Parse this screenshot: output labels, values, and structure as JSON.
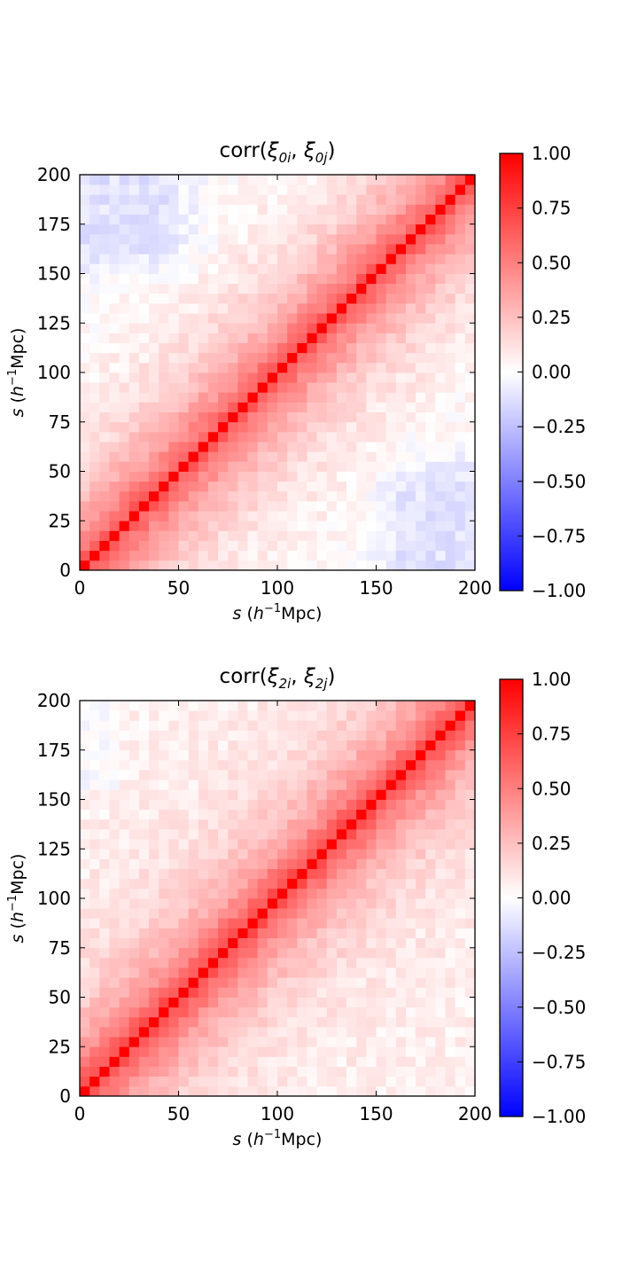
{
  "chart_data": [
    {
      "type": "heatmap",
      "title": "corr(ξ0i, ξ0j)",
      "title_parts": {
        "pre": "corr(",
        "sym1": "ξ",
        "sub1": "0i",
        "mid": ", ",
        "sym2": "ξ",
        "sub2": "0j",
        "post": ")"
      },
      "xlabel": {
        "var": "s",
        "pre": " (",
        "h": "h",
        "sup": "−1",
        "unit": "Mpc)"
      },
      "ylabel": {
        "var": "s",
        "pre": " (",
        "h": "h",
        "sup": "−1",
        "unit": "Mpc)"
      },
      "xlim": [
        0,
        200
      ],
      "ylim": [
        0,
        200
      ],
      "xticks": [
        "0",
        "50",
        "100",
        "150",
        "200"
      ],
      "yticks": [
        "0",
        "25",
        "50",
        "75",
        "100",
        "125",
        "150",
        "175",
        "200"
      ],
      "bins": 40,
      "bin_width": 5,
      "diagonal_value": 1.0,
      "correlation_falloff_bins": 7,
      "offdiagonal_description": "correlation decays away from diagonal; weak negative values near top-left and bottom-right corners",
      "colorbar": {
        "range": [
          -1.0,
          1.0
        ],
        "ticks": [
          "1.00",
          "0.75",
          "0.50",
          "0.25",
          "0.00",
          "−0.25",
          "−0.50",
          "−0.75",
          "−1.00"
        ],
        "colormap": "bwr",
        "low_color": "#0000ff",
        "mid_color": "#ffffff",
        "high_color": "#ff0000"
      },
      "grid": false
    },
    {
      "type": "heatmap",
      "title": "corr(ξ2i, ξ2j)",
      "title_parts": {
        "pre": "corr(",
        "sym1": "ξ",
        "sub1": "2i",
        "mid": ", ",
        "sym2": "ξ",
        "sub2": "2j",
        "post": ")"
      },
      "xlabel": {
        "var": "s",
        "pre": " (",
        "h": "h",
        "sup": "−1",
        "unit": "Mpc)"
      },
      "ylabel": {
        "var": "s",
        "pre": " (",
        "h": "h",
        "sup": "−1",
        "unit": "Mpc)"
      },
      "xlim": [
        0,
        200
      ],
      "ylim": [
        0,
        200
      ],
      "xticks": [
        "0",
        "50",
        "100",
        "150",
        "200"
      ],
      "yticks": [
        "0",
        "25",
        "50",
        "75",
        "100",
        "125",
        "150",
        "175",
        "200"
      ],
      "bins": 40,
      "bin_width": 5,
      "diagonal_value": 1.0,
      "correlation_falloff_bins": 6,
      "offdiagonal_description": "correlation decays away from diagonal; mostly weak positive off-diagonal values",
      "colorbar": {
        "range": [
          -1.0,
          1.0
        ],
        "ticks": [
          "1.00",
          "0.75",
          "0.50",
          "0.25",
          "0.00",
          "−0.25",
          "−0.50",
          "−0.75",
          "−1.00"
        ],
        "colormap": "bwr",
        "low_color": "#0000ff",
        "mid_color": "#ffffff",
        "high_color": "#ff0000"
      },
      "grid": false
    }
  ]
}
